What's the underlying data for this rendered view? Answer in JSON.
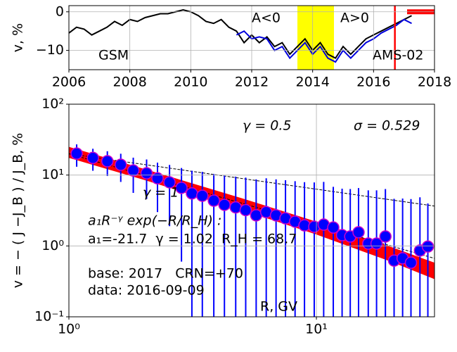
{
  "chart_data": [
    {
      "type": "line",
      "ylabel": "v, %",
      "x": [
        2006,
        2006.25,
        2006.5,
        2006.75,
        2007,
        2007.25,
        2007.5,
        2007.75,
        2008,
        2008.25,
        2008.5,
        2008.75,
        2009,
        2009.25,
        2009.5,
        2009.75,
        2010,
        2010.25,
        2010.5,
        2010.75,
        2011,
        2011.25,
        2011.5,
        2011.75,
        2012,
        2012.25,
        2012.5,
        2012.75,
        2013,
        2013.25,
        2013.5,
        2013.75,
        2014,
        2014.25,
        2014.5,
        2014.75,
        2015,
        2015.25,
        2015.5,
        2015.75,
        2016,
        2016.25,
        2016.5,
        2016.75,
        2017,
        2017.25
      ],
      "series": [
        {
          "name": "GSM",
          "color": "#000000",
          "values": [
            -5.5,
            -4,
            -4.5,
            -6,
            -5,
            -4,
            -2.5,
            -3.5,
            -2,
            -2.5,
            -1.5,
            -1,
            -0.5,
            -0.5,
            0,
            0.5,
            0,
            -1,
            -2.5,
            -3,
            -2,
            -4,
            -5,
            -8,
            -6,
            -8,
            -6.5,
            -9,
            -8,
            -11,
            -9,
            -7,
            -10,
            -8,
            -11,
            -12,
            -9,
            -11,
            -9,
            -7,
            -6,
            -5,
            -4,
            -3,
            -2,
            -1
          ]
        },
        {
          "name": "AMS-02",
          "color": "#0000dd",
          "values": [
            null,
            null,
            null,
            null,
            null,
            null,
            null,
            null,
            null,
            null,
            null,
            null,
            null,
            null,
            null,
            null,
            null,
            null,
            null,
            null,
            null,
            null,
            -6,
            -5,
            -7,
            -6.5,
            -7,
            -10,
            -9,
            -12,
            -10,
            -8,
            -11,
            -9,
            -12,
            -13,
            -10,
            -12,
            -10,
            -8,
            -7,
            -5.5,
            -4.5,
            -3.5,
            -2,
            -3
          ]
        }
      ],
      "annotations": [
        "A<0",
        "A>0"
      ],
      "shaded_region": {
        "x": [
          2013.5,
          2014.7
        ],
        "color": "#ffff00"
      },
      "vline": {
        "x": 2016.7,
        "color": "#ff0000"
      },
      "marker_bar": {
        "x": [
          2017.1,
          2018
        ],
        "y": 0,
        "color": "#ff0000"
      },
      "xlim": [
        2006,
        2018
      ],
      "xticks": [
        2006,
        2008,
        2010,
        2012,
        2014,
        2016,
        2018
      ],
      "ylim": [
        -15,
        1.6
      ],
      "yticks": [
        0,
        {
          "value": -10,
          "label": "−10"
        }
      ],
      "grid": true
    },
    {
      "type": "scatter",
      "ylabel": "v = − ( J −J_B ) / J_B, %",
      "xlabel": "R, GV",
      "log_x": true,
      "log_y": true,
      "x": [
        1.075,
        1.25,
        1.43,
        1.62,
        1.82,
        2.06,
        2.28,
        2.55,
        2.85,
        3.14,
        3.46,
        3.85,
        4.25,
        4.72,
        5.18,
        5.71,
        6.27,
        6.87,
        7.5,
        8.2,
        8.95,
        9.8,
        10.7,
        11.7,
        12.7,
        13.7,
        14.8,
        16.2,
        17.5,
        19.0,
        20.6,
        22.3,
        24.1,
        26.2,
        28.2
      ],
      "values": [
        20.1,
        17.5,
        15.7,
        14.0,
        11.6,
        10.6,
        9.0,
        7.9,
        6.6,
        5.5,
        5.1,
        4.35,
        3.8,
        3.5,
        3.2,
        2.7,
        3.0,
        2.7,
        2.45,
        2.2,
        1.95,
        1.87,
        2.0,
        1.82,
        1.42,
        1.36,
        1.56,
        1.08,
        1.08,
        1.36,
        0.62,
        0.67,
        0.58,
        0.86,
        0.98
      ],
      "errors": [
        7,
        6,
        6,
        6,
        6,
        6,
        6,
        6,
        6,
        6,
        6,
        6,
        6,
        6,
        6,
        6,
        6,
        6,
        6,
        6,
        6,
        6,
        6,
        5,
        5,
        5,
        5,
        5,
        5,
        5,
        4,
        4,
        4,
        4,
        3
      ],
      "color": "#0000ff",
      "edge_color": "#cc00cc",
      "fit_band": {
        "x": [
          1,
          2,
          5,
          10,
          20,
          30
        ],
        "upper": [
          25,
          12.3,
          4.7,
          2.2,
          0.97,
          0.58
        ],
        "lower": [
          17.5,
          8.6,
          3.2,
          1.45,
          0.6,
          0.34
        ],
        "color": "#ff0000"
      },
      "ref_lines": [
        {
          "x": [
            1,
            30
          ],
          "values": [
            20,
            3.65
          ]
        },
        {
          "x": [
            1,
            30
          ],
          "values": [
            20,
            0.667
          ]
        }
      ],
      "annotations": [
        "γ = 0.5",
        "σ = 0.529",
        "γ = 1",
        "a₁R⁻ᵞ exp(−R/R_H) :",
        "a₁=-21.7  γ = 1.02  R_H = 68.7",
        "base: 2017   CRN=+70",
        "data: 2016-09-09"
      ],
      "xlim": [
        1,
        30
      ],
      "xticks": [
        {
          "value": 1,
          "label": "10⁰"
        },
        {
          "value": 10,
          "label": "10¹"
        }
      ],
      "ylim": [
        0.1,
        100
      ],
      "yticks": [
        {
          "value": 0.1,
          "label": "10⁻¹"
        },
        {
          "value": 1,
          "label": "10⁰"
        },
        {
          "value": 10,
          "label": "10¹"
        },
        {
          "value": 100,
          "label": "10²"
        }
      ],
      "grid": true
    }
  ]
}
